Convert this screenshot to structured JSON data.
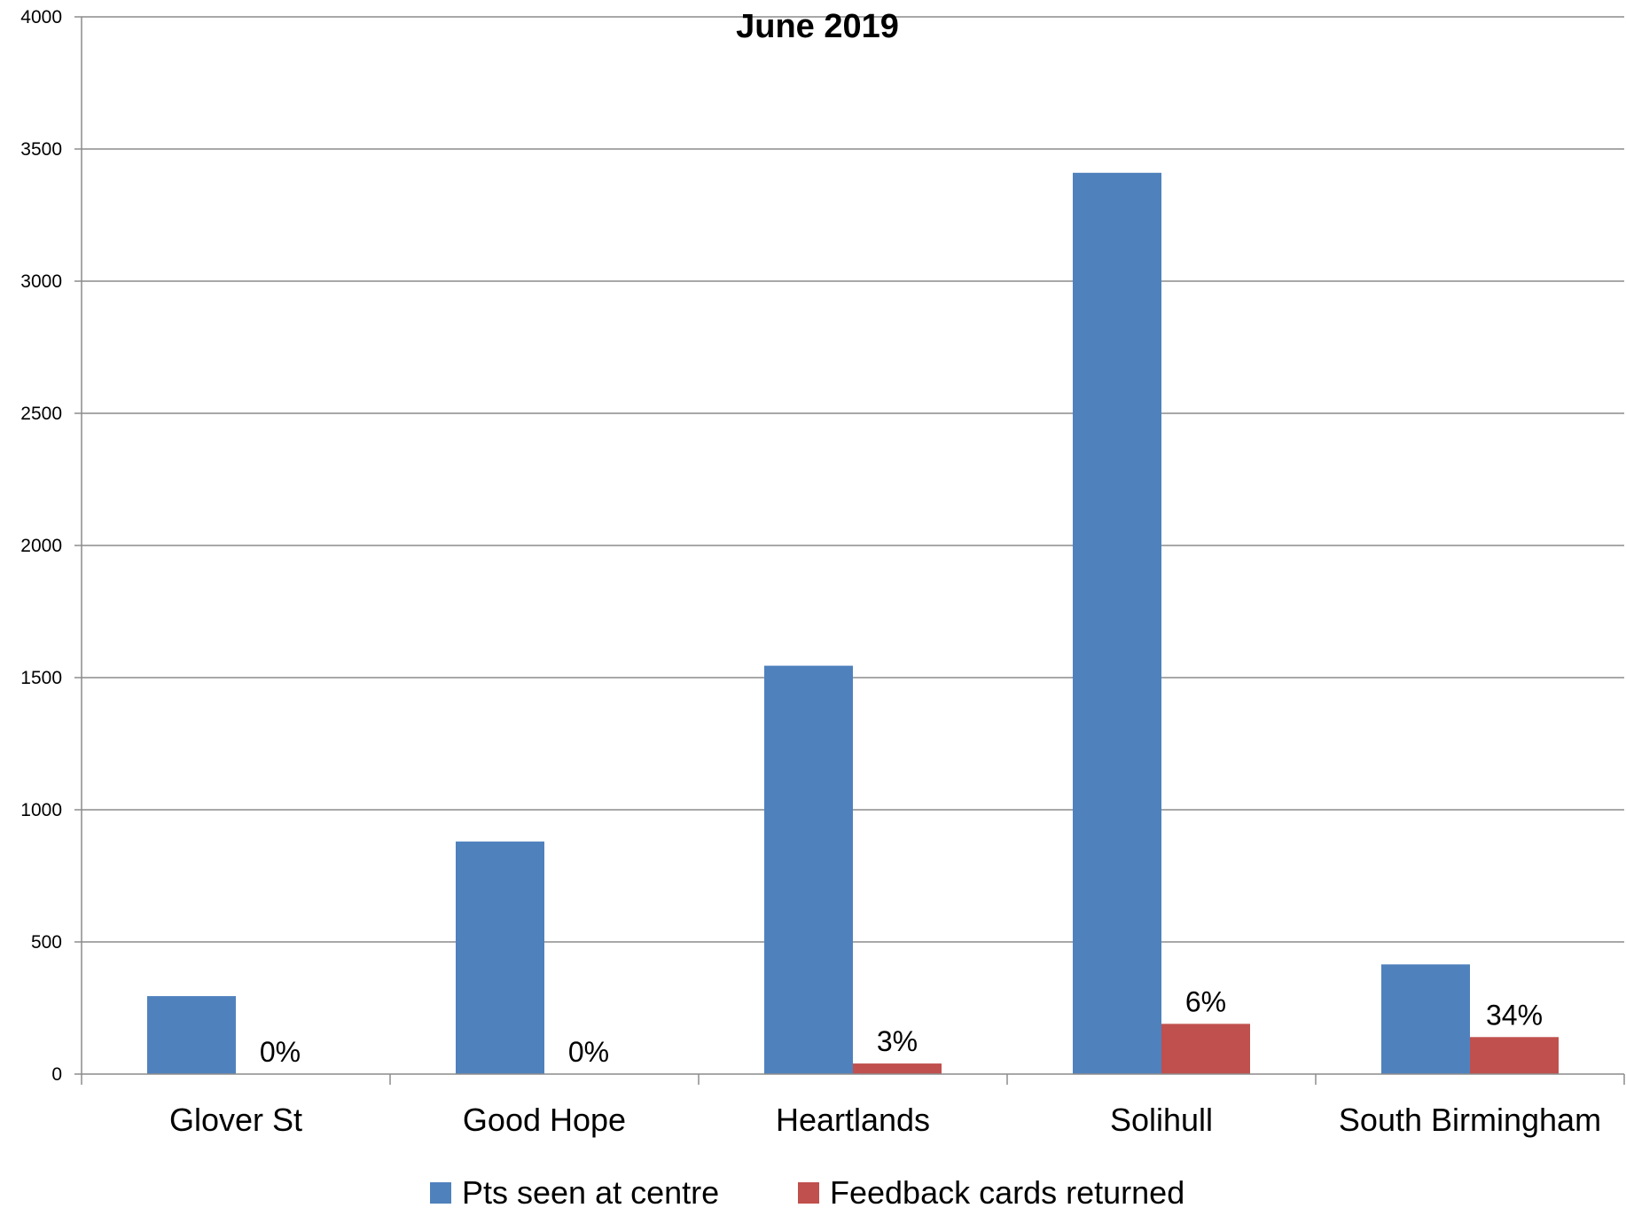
{
  "chart_data": {
    "type": "bar",
    "title": "June 2019",
    "xlabel": "",
    "ylabel": "",
    "ylim": [
      0,
      4000
    ],
    "yticks": [
      0,
      500,
      1000,
      1500,
      2000,
      2500,
      3000,
      3500,
      4000
    ],
    "categories": [
      "Glover St",
      "Good Hope",
      "Heartlands",
      "Solihull",
      "South Birmingham"
    ],
    "series": [
      {
        "name": "Pts seen at centre",
        "color": "#4f81bd",
        "values": [
          295,
          880,
          1545,
          3410,
          415
        ]
      },
      {
        "name": "Feedback cards returned",
        "color": "#c0504d",
        "values": [
          0,
          0,
          40,
          190,
          140
        ],
        "data_labels": [
          "0%",
          "0%",
          "3%",
          "6%",
          "34%"
        ]
      }
    ],
    "grid": true,
    "legend_position": "bottom"
  }
}
